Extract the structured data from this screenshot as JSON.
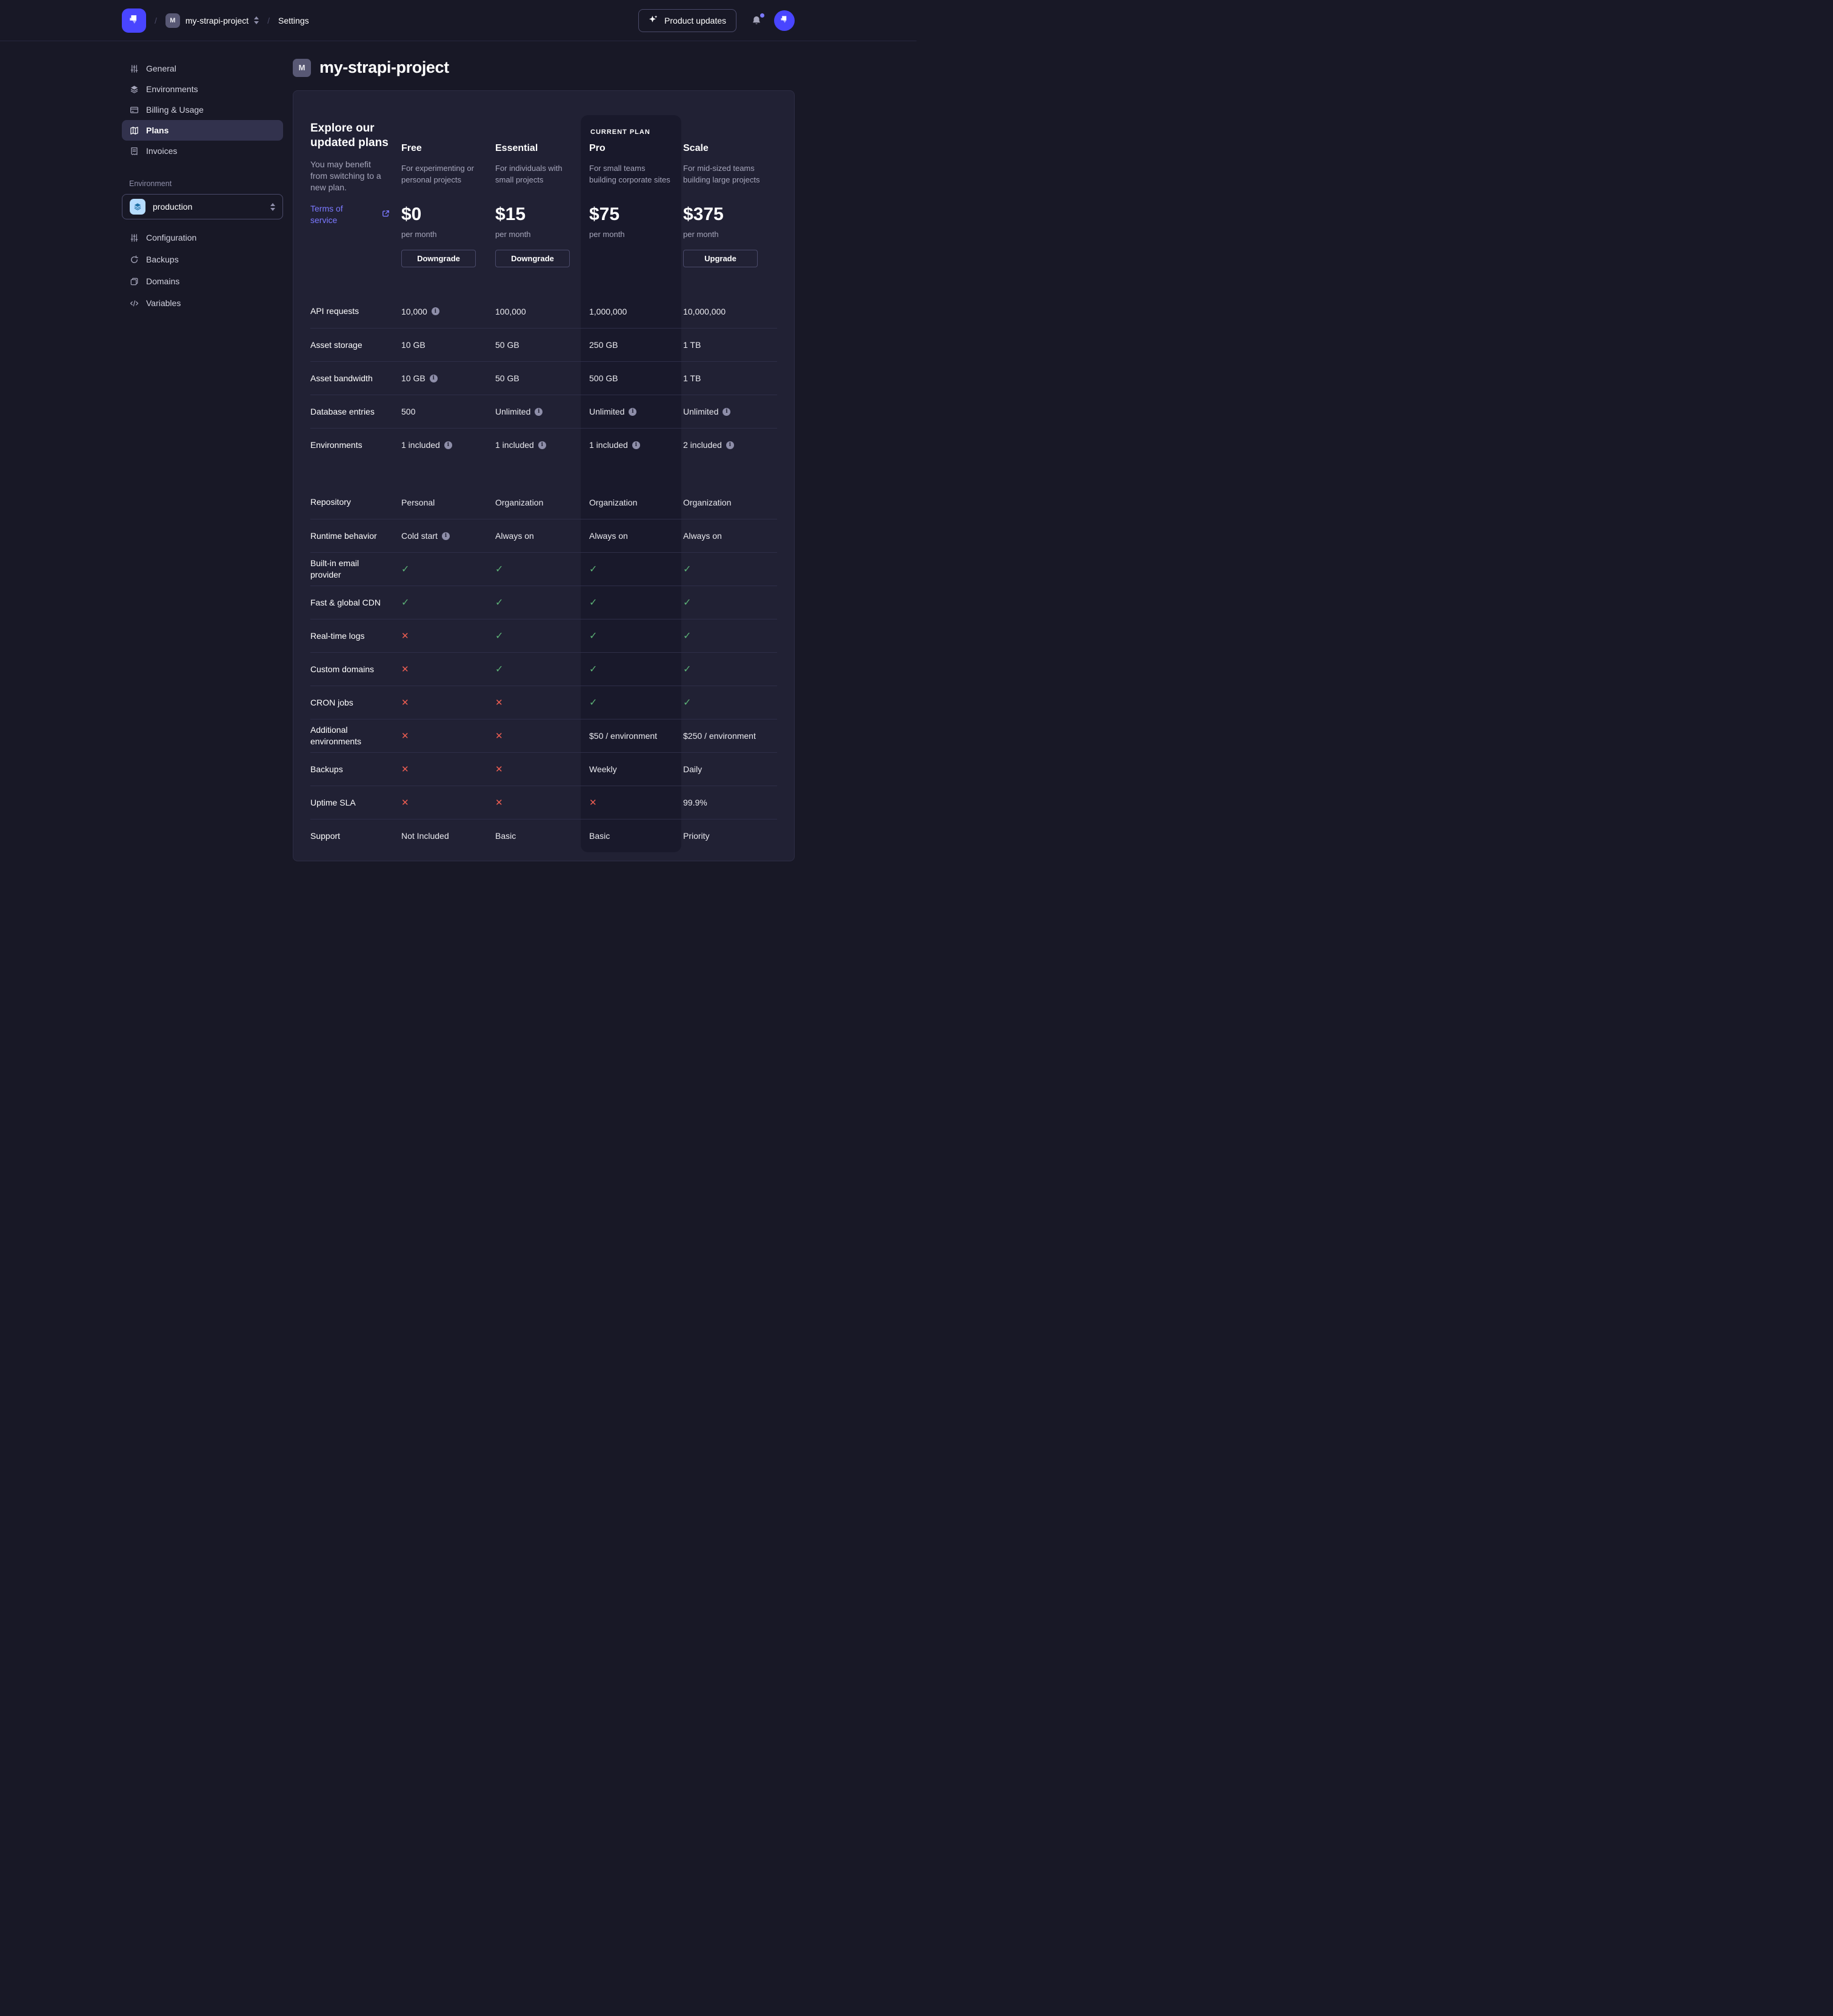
{
  "topbar": {
    "separator": "/",
    "project_initial": "M",
    "project_name": "my-strapi-project",
    "section": "Settings",
    "product_updates_label": "Product updates"
  },
  "sidebar": {
    "items": [
      {
        "label": "General",
        "icon": "sliders",
        "active": false
      },
      {
        "label": "Environments",
        "icon": "layers",
        "active": false
      },
      {
        "label": "Billing & Usage",
        "icon": "card",
        "active": false
      },
      {
        "label": "Plans",
        "icon": "map",
        "active": true
      },
      {
        "label": "Invoices",
        "icon": "receipt",
        "active": false
      }
    ],
    "environment_label": "Environment",
    "environment_value": "production",
    "env_items": [
      {
        "label": "Configuration",
        "icon": "sliders"
      },
      {
        "label": "Backups",
        "icon": "refresh"
      },
      {
        "label": "Domains",
        "icon": "stack"
      },
      {
        "label": "Variables",
        "icon": "code"
      }
    ]
  },
  "main": {
    "project_initial": "M",
    "title": "my-strapi-project",
    "plans_header": {
      "heading": "Explore our updated plans",
      "subtitle": "You may benefit from switching to a new plan.",
      "terms_link": "Terms of service",
      "current_plan_label": "CURRENT PLAN"
    },
    "plans": [
      {
        "name": "Free",
        "description": "For experimenting or personal projects",
        "price": "$0",
        "period": "per month",
        "button": "Downgrade",
        "current": false
      },
      {
        "name": "Essential",
        "description": "For individuals with small projects",
        "price": "$15",
        "period": "per month",
        "button": "Downgrade",
        "current": false
      },
      {
        "name": "Pro",
        "description": "For small teams building corporate sites",
        "price": "$75",
        "period": "per month",
        "button": null,
        "current": true
      },
      {
        "name": "Scale",
        "description": "For mid-sized teams building large projects",
        "price": "$375",
        "period": "per month",
        "button": "Upgrade",
        "current": false
      }
    ],
    "table": {
      "groups": [
        {
          "rows": [
            {
              "label": "API requests",
              "values": [
                {
                  "text": "10,000",
                  "info": true
                },
                {
                  "text": "100,000"
                },
                {
                  "text": "1,000,000"
                },
                {
                  "text": "10,000,000"
                }
              ]
            },
            {
              "label": "Asset storage",
              "values": [
                {
                  "text": "10 GB"
                },
                {
                  "text": "50 GB"
                },
                {
                  "text": "250 GB"
                },
                {
                  "text": "1 TB"
                }
              ]
            },
            {
              "label": "Asset bandwidth",
              "values": [
                {
                  "text": "10 GB",
                  "info": true
                },
                {
                  "text": "50 GB"
                },
                {
                  "text": "500 GB"
                },
                {
                  "text": "1 TB"
                }
              ]
            },
            {
              "label": "Database entries",
              "values": [
                {
                  "text": "500"
                },
                {
                  "text": "Unlimited",
                  "info": true
                },
                {
                  "text": "Unlimited",
                  "info": true
                },
                {
                  "text": "Unlimited",
                  "info": true
                }
              ]
            },
            {
              "label": "Environments",
              "values": [
                {
                  "text": "1 included",
                  "info": true
                },
                {
                  "text": "1 included",
                  "info": true
                },
                {
                  "text": "1 included",
                  "info": true
                },
                {
                  "text": "2 included",
                  "info": true
                }
              ]
            }
          ]
        },
        {
          "rows": [
            {
              "label": "Repository",
              "values": [
                {
                  "text": "Personal"
                },
                {
                  "text": "Organization"
                },
                {
                  "text": "Organization"
                },
                {
                  "text": "Organization"
                }
              ]
            },
            {
              "label": "Runtime behavior",
              "values": [
                {
                  "text": "Cold start",
                  "info": true
                },
                {
                  "text": "Always on"
                },
                {
                  "text": "Always on"
                },
                {
                  "text": "Always on"
                }
              ]
            },
            {
              "label": "Built-in email provider",
              "values": [
                {
                  "icon": "check"
                },
                {
                  "icon": "check"
                },
                {
                  "icon": "check"
                },
                {
                  "icon": "check"
                }
              ]
            },
            {
              "label": "Fast & global CDN",
              "values": [
                {
                  "icon": "check"
                },
                {
                  "icon": "check"
                },
                {
                  "icon": "check"
                },
                {
                  "icon": "check"
                }
              ]
            },
            {
              "label": "Real-time logs",
              "values": [
                {
                  "icon": "cross"
                },
                {
                  "icon": "check"
                },
                {
                  "icon": "check"
                },
                {
                  "icon": "check"
                }
              ]
            },
            {
              "label": "Custom domains",
              "values": [
                {
                  "icon": "cross"
                },
                {
                  "icon": "check"
                },
                {
                  "icon": "check"
                },
                {
                  "icon": "check"
                }
              ]
            },
            {
              "label": "CRON jobs",
              "values": [
                {
                  "icon": "cross"
                },
                {
                  "icon": "cross"
                },
                {
                  "icon": "check"
                },
                {
                  "icon": "check"
                }
              ]
            },
            {
              "label": "Additional environments",
              "values": [
                {
                  "icon": "cross"
                },
                {
                  "icon": "cross"
                },
                {
                  "text": "$50 / environment"
                },
                {
                  "text": "$250 / environment"
                }
              ]
            },
            {
              "label": "Backups",
              "values": [
                {
                  "icon": "cross"
                },
                {
                  "icon": "cross"
                },
                {
                  "text": "Weekly"
                },
                {
                  "text": "Daily"
                }
              ]
            },
            {
              "label": "Uptime SLA",
              "values": [
                {
                  "icon": "cross"
                },
                {
                  "icon": "cross"
                },
                {
                  "icon": "cross"
                },
                {
                  "text": "99.9%"
                }
              ]
            },
            {
              "label": "Support",
              "values": [
                {
                  "text": "Not Included"
                },
                {
                  "text": "Basic"
                },
                {
                  "text": "Basic"
                },
                {
                  "text": "Priority"
                }
              ]
            }
          ]
        }
      ]
    }
  },
  "colors": {
    "background": "#181826",
    "panel": "#212134",
    "highlight_column": "#19192b",
    "accent": "#4945ff",
    "accent_light": "#7b79ff",
    "success": "#5cb176",
    "danger": "#ee5e52"
  }
}
